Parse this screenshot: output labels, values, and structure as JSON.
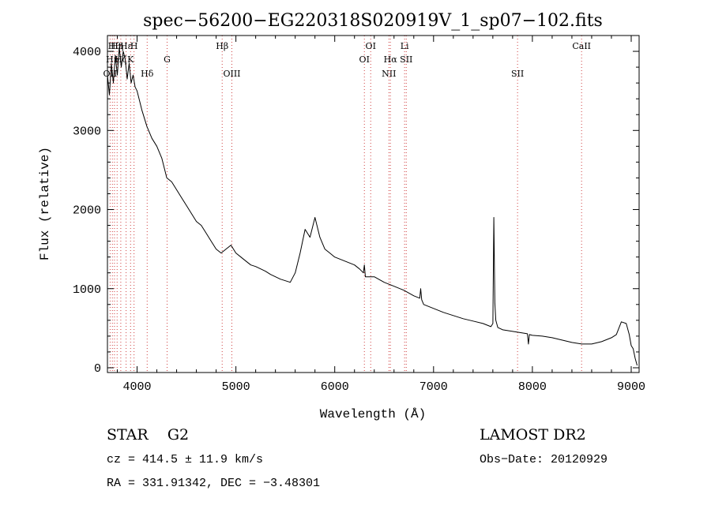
{
  "chart_data": {
    "type": "line",
    "title": "spec−56200−EG220318S020919V_1_sp07−102.fits",
    "xlabel": "Wavelength (Å)",
    "ylabel": "Flux (relative)",
    "xlim": [
      3700,
      9080
    ],
    "ylim": [
      -60,
      4200
    ],
    "xticks": [
      4000,
      5000,
      6000,
      7000,
      8000,
      9000
    ],
    "yticks": [
      0,
      1000,
      2000,
      3000,
      4000
    ],
    "grid": false,
    "series": [
      {
        "name": "flux",
        "x": [
          3700,
          3720,
          3740,
          3760,
          3780,
          3800,
          3820,
          3840,
          3860,
          3880,
          3900,
          3920,
          3940,
          3960,
          3980,
          4000,
          4050,
          4100,
          4150,
          4200,
          4250,
          4300,
          4350,
          4400,
          4450,
          4500,
          4550,
          4600,
          4650,
          4700,
          4750,
          4800,
          4850,
          4900,
          4950,
          5000,
          5050,
          5100,
          5150,
          5200,
          5250,
          5300,
          5350,
          5400,
          5450,
          5500,
          5550,
          5600,
          5650,
          5700,
          5750,
          5800,
          5850,
          5900,
          5950,
          6000,
          6100,
          6200,
          6250,
          6290,
          6300,
          6310,
          6400,
          6500,
          6600,
          6700,
          6800,
          6860,
          6870,
          6880,
          6900,
          7000,
          7100,
          7200,
          7300,
          7400,
          7500,
          7580,
          7600,
          7610,
          7620,
          7630,
          7650,
          7700,
          7800,
          7900,
          7950,
          7960,
          7970,
          8000,
          8100,
          8200,
          8300,
          8400,
          8500,
          8600,
          8700,
          8800,
          8850,
          8900,
          8950,
          8980,
          9000,
          9020,
          9040,
          9060
        ],
        "y": [
          3700,
          3450,
          3850,
          3600,
          3950,
          3700,
          4050,
          3800,
          4000,
          3900,
          3650,
          3850,
          3600,
          3700,
          3550,
          3500,
          3250,
          3050,
          2900,
          2800,
          2650,
          2400,
          2350,
          2250,
          2150,
          2050,
          1950,
          1850,
          1800,
          1700,
          1600,
          1500,
          1450,
          1500,
          1550,
          1450,
          1400,
          1350,
          1300,
          1280,
          1250,
          1220,
          1180,
          1150,
          1120,
          1100,
          1080,
          1200,
          1450,
          1750,
          1650,
          1900,
          1650,
          1500,
          1450,
          1400,
          1350,
          1300,
          1250,
          1200,
          1300,
          1150,
          1150,
          1080,
          1030,
          980,
          910,
          880,
          1000,
          860,
          800,
          750,
          700,
          660,
          620,
          590,
          560,
          520,
          560,
          1900,
          820,
          600,
          510,
          480,
          460,
          440,
          430,
          300,
          420,
          410,
          400,
          380,
          350,
          320,
          300,
          300,
          330,
          380,
          420,
          580,
          560,
          420,
          280,
          240,
          120,
          30
        ]
      }
    ],
    "line_marks": [
      {
        "label": "OII",
        "wavelength": 3727,
        "row": 3
      },
      {
        "label": "Hη",
        "wavelength": 3750,
        "row": 2
      },
      {
        "label": "Hθ",
        "wavelength": 3771,
        "row": 1
      },
      {
        "label": "Hη",
        "wavelength": 3798,
        "row": 1
      },
      {
        "label": "Hζ",
        "wavelength": 3835,
        "row": 2
      },
      {
        "label": "Hε",
        "wavelength": 3889,
        "row": 1
      },
      {
        "label": "K",
        "wavelength": 3934,
        "row": 2
      },
      {
        "label": "H",
        "wavelength": 3969,
        "row": 1
      },
      {
        "label": "Hδ",
        "wavelength": 4102,
        "row": 3
      },
      {
        "label": "G",
        "wavelength": 4304,
        "row": 2
      },
      {
        "label": "Hβ",
        "wavelength": 4861,
        "row": 1
      },
      {
        "label": "OIII",
        "wavelength": 4959,
        "row": 3
      },
      {
        "label": "OI",
        "wavelength": 6300,
        "row": 2
      },
      {
        "label": "OI",
        "wavelength": 6364,
        "row": 1
      },
      {
        "label": "NII",
        "wavelength": 6548,
        "row": 3
      },
      {
        "label": "Hα",
        "wavelength": 6563,
        "row": 2
      },
      {
        "label": "Li",
        "wavelength": 6707,
        "row": 1
      },
      {
        "label": "SII",
        "wavelength": 6724,
        "row": 2
      },
      {
        "label": "SII",
        "wavelength": 7850,
        "row": 3
      },
      {
        "label": "CaII",
        "wavelength": 8498,
        "row": 1
      }
    ]
  },
  "info": {
    "object_class": "STAR",
    "subclass": "G2",
    "survey": "LAMOST DR2",
    "cz_line": "cz = 414.5 ± 11.9 km/s",
    "obs_date_line": "Obs−Date: 20120929",
    "radec_line": "RA = 331.91342, DEC =  −3.48301"
  }
}
